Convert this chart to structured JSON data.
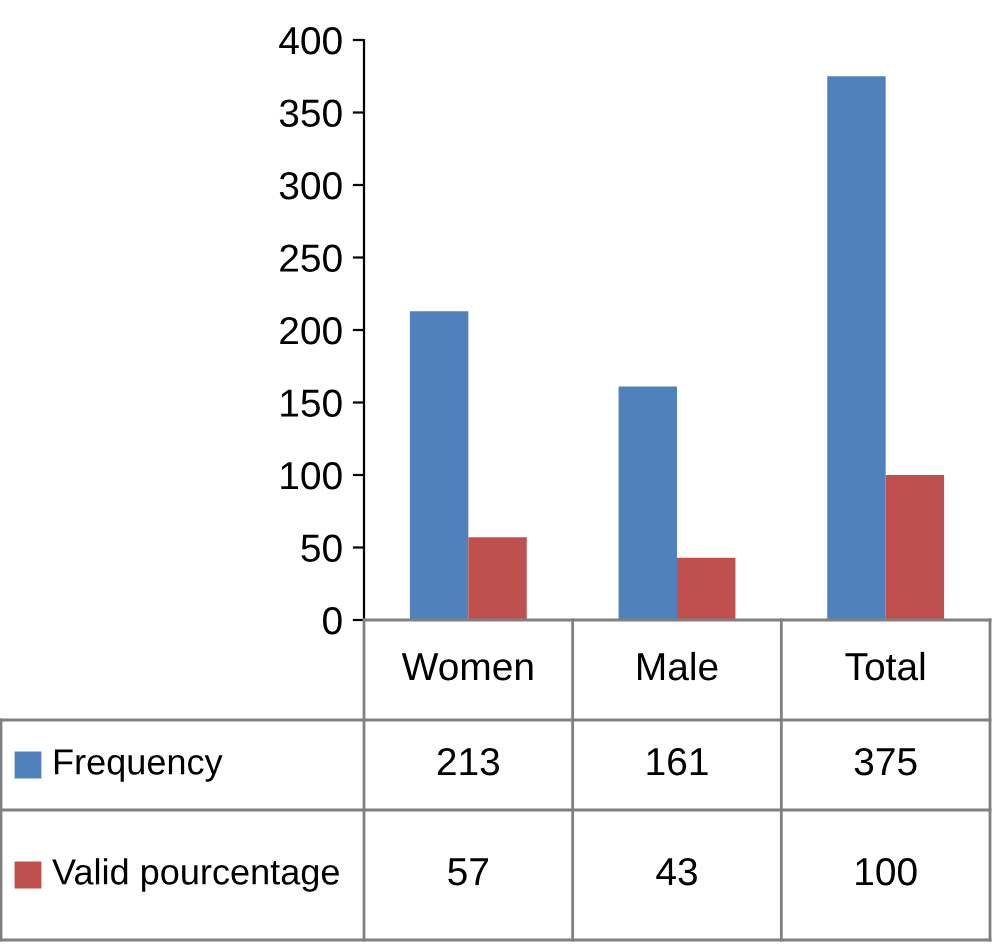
{
  "chart_data": {
    "type": "bar",
    "categories": [
      "Women",
      "Male",
      "Total"
    ],
    "series": [
      {
        "name": "Frequency",
        "color": "#4f81bd",
        "values": [
          213,
          161,
          375
        ]
      },
      {
        "name": "Valid pourcentage",
        "color": "#c0504d",
        "values": [
          57,
          43,
          100
        ]
      }
    ],
    "ylim": [
      0,
      400
    ],
    "yticks": [
      0,
      50,
      100,
      150,
      200,
      250,
      300,
      350,
      400
    ],
    "grid": false,
    "legend": "bottom",
    "data_labels": true
  }
}
